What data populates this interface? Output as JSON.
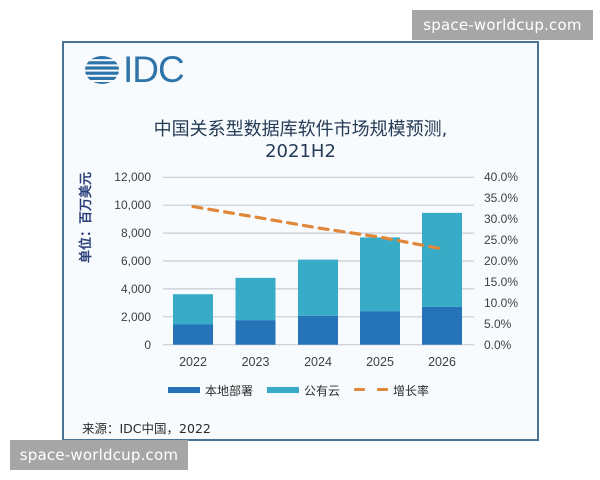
{
  "watermarks": {
    "top_right": "space-worldcup.com",
    "bottom_left": "space-worldcup.com"
  },
  "logo": {
    "text": "IDC",
    "icon": "idc-globe-icon"
  },
  "title": {
    "line1": "中国关系型数据库软件市场规模预测,",
    "line2": "2021H2"
  },
  "axis": {
    "ylabel": "单位：百万美元",
    "left_ticks": [
      "12,000",
      "10,000",
      "8,000",
      "6,000",
      "4,000",
      "2,000",
      "0"
    ],
    "right_ticks": [
      "40.0%",
      "35.0%",
      "30.0%",
      "25.0%",
      "20.0%",
      "15.0%",
      "10.0%",
      "5.0%",
      "0.0%"
    ],
    "x_ticks": [
      "2022",
      "2023",
      "2024",
      "2025",
      "2026"
    ]
  },
  "legend": {
    "on_premise": "本地部署",
    "public_cloud": "公有云",
    "growth": "增长率"
  },
  "source": "来源：IDC中国，2022",
  "colors": {
    "on_premise": "#2574b8",
    "public_cloud": "#38acc7",
    "growth": "#e0873a",
    "grid": "#c8cdd3",
    "frame": "#4a7496",
    "title": "#243a55",
    "logo": "#2f74a9"
  },
  "chart_data": {
    "type": "bar",
    "title": "中国关系型数据库软件市场规模预测, 2021H2",
    "xlabel": "",
    "ylabel": "单位：百万美元",
    "y2label": "增长率",
    "categories": [
      "2022",
      "2023",
      "2024",
      "2025",
      "2026"
    ],
    "stacked": true,
    "series": [
      {
        "name": "本地部署",
        "type": "bar",
        "axis": "left",
        "values": [
          1450,
          1760,
          2070,
          2400,
          2710
        ]
      },
      {
        "name": "公有云",
        "type": "bar",
        "axis": "left",
        "values": [
          2170,
          3030,
          4030,
          5290,
          6740
        ]
      },
      {
        "name": "增长率",
        "type": "line",
        "style": "dashed",
        "axis": "right",
        "values": [
          33.0,
          30.5,
          27.9,
          25.7,
          22.9
        ]
      }
    ],
    "totals": [
      3620,
      4790,
      6100,
      7690,
      9450
    ],
    "ylim": [
      0,
      12000
    ],
    "y2lim": [
      0,
      40
    ],
    "grid": true,
    "legend_position": "bottom",
    "source": "来源：IDC中国，2022"
  }
}
